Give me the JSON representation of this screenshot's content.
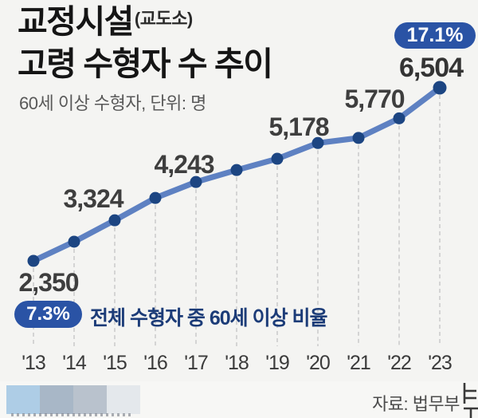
{
  "header": {
    "title_line1": "교정시설",
    "title_paren": "(교도소)",
    "title_line2": "고령 수형자 수 추이",
    "subtitle": "60세 이상 수형자, 단위: 명",
    "top_badge": "17.1%",
    "bottom_badge": "7.3%",
    "badge_caption": "전체 수형자 중 60세 이상 비율"
  },
  "footer": {
    "source": "자료: 법무부",
    "palette": [
      "#AECDE6",
      "#A8B7C7",
      "#B9C2CD",
      "#E4E8EC"
    ]
  },
  "colors": {
    "background": "#F4F4F2",
    "line": "#5E81C2",
    "dot": "#1C4582",
    "badge": "#2A53A5",
    "caption_text": "#1C3C78",
    "dash": "#C9C9C9"
  },
  "chart_data": {
    "type": "line",
    "title": "교정시설(교도소) 고령 수형자 수 추이",
    "subtitle": "60세 이상 수형자, 단위: 명",
    "x": [
      "'13",
      "'14",
      "'15",
      "'16",
      "'17",
      "'18",
      "'19",
      "'20",
      "'21",
      "'22",
      "'23"
    ],
    "values": [
      2350,
      2810,
      3324,
      3860,
      4243,
      4530,
      4800,
      5178,
      5300,
      5770,
      6504
    ],
    "value_labels": {
      "0": "2,350",
      "2": "3,324",
      "4": "4,243",
      "7": "5,178",
      "9": "5,770",
      "10": "6,504"
    },
    "estimated_indices": [
      1,
      3,
      5,
      6,
      8
    ],
    "ratio_start": "7.3%",
    "ratio_end": "17.1%",
    "ylim": [
      2000,
      6800
    ],
    "grid": "vertical-dashed",
    "legend": "none",
    "source": "자료: 법무부"
  }
}
